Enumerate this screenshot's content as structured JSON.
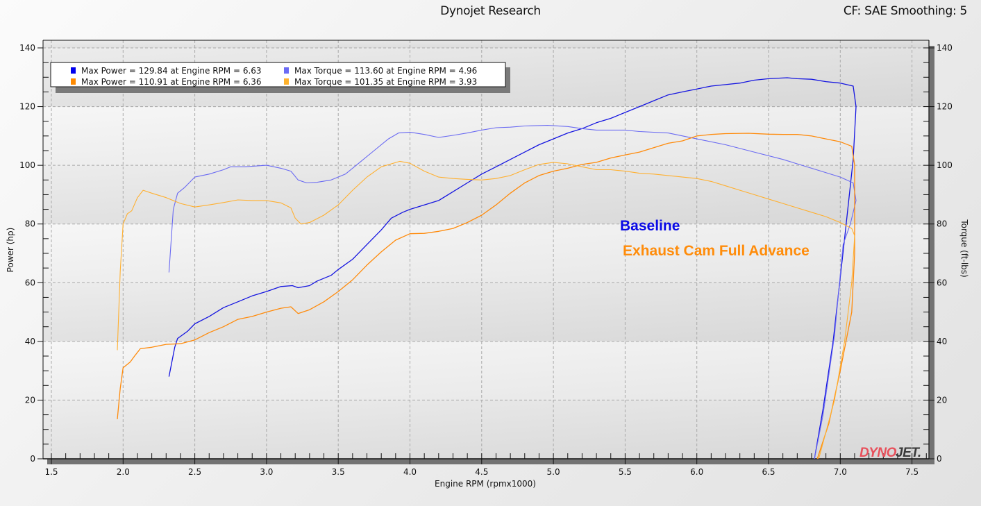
{
  "header": {
    "title": "Dynojet Research",
    "correction": "CF: SAE Smoothing: 5"
  },
  "logo": {
    "text_red": "DYNO",
    "text_dark": "JET",
    "dot": "."
  },
  "annotations": [
    {
      "label": "Baseline",
      "color": "#0a0ae6"
    },
    {
      "label": "Exhaust Cam Full Advance",
      "color": "#ff8c0a"
    }
  ],
  "legend": [
    {
      "swatch": "#0000ee",
      "text": "Max Power = 129.84 at Engine RPM = 6.63"
    },
    {
      "swatch": "#6b6bf5",
      "text": "Max Torque = 113.60 at Engine RPM = 4.96"
    },
    {
      "swatch": "#ff8a00",
      "text": "Max Power = 110.91 at Engine RPM = 6.36"
    },
    {
      "swatch": "#ffb22c",
      "text": "Max Torque = 101.35 at Engine RPM = 3.93"
    }
  ],
  "chart_data": {
    "type": "line",
    "title": "Dynojet Research",
    "subtitle": "CF: SAE Smoothing: 5",
    "xlabel": "Engine RPM (rpmx1000)",
    "ylabel": "Power (hp)",
    "y2label": "Torque (ft-lbs)",
    "xlim": [
      1.45,
      7.62
    ],
    "ylim": [
      0,
      140
    ],
    "y2lim": [
      0,
      140
    ],
    "x_ticks": [
      "1.5",
      "2.0",
      "2.5",
      "3.0",
      "3.5",
      "4.0",
      "4.5",
      "5.0",
      "5.5",
      "6.0",
      "6.5",
      "7.0",
      "7.5"
    ],
    "y_ticks": [
      "0",
      "20",
      "40",
      "60",
      "80",
      "100",
      "120",
      "140"
    ],
    "y2_ticks": [
      "0",
      "20",
      "40",
      "60",
      "80",
      "100",
      "120",
      "140"
    ],
    "grid": true,
    "legend_position": "top-left",
    "series": [
      {
        "name": "Baseline Power (hp)",
        "axis": "left",
        "color": "#1414e0",
        "width": 1.3,
        "points": [
          [
            2.32,
            28
          ],
          [
            2.36,
            38
          ],
          [
            2.38,
            41
          ],
          [
            2.45,
            43.5
          ],
          [
            2.5,
            46
          ],
          [
            2.6,
            48.5
          ],
          [
            2.7,
            51.5
          ],
          [
            2.8,
            53.5
          ],
          [
            2.9,
            55.5
          ],
          [
            3.0,
            57
          ],
          [
            3.1,
            58.7
          ],
          [
            3.18,
            59
          ],
          [
            3.22,
            58.3
          ],
          [
            3.3,
            59
          ],
          [
            3.35,
            60.5
          ],
          [
            3.45,
            62.5
          ],
          [
            3.5,
            64.5
          ],
          [
            3.6,
            68
          ],
          [
            3.7,
            73
          ],
          [
            3.8,
            78
          ],
          [
            3.87,
            82
          ],
          [
            3.95,
            84
          ],
          [
            4.0,
            85
          ],
          [
            4.1,
            86.5
          ],
          [
            4.2,
            88
          ],
          [
            4.3,
            91
          ],
          [
            4.4,
            94
          ],
          [
            4.5,
            97
          ],
          [
            4.6,
            99.5
          ],
          [
            4.7,
            102
          ],
          [
            4.8,
            104.5
          ],
          [
            4.9,
            107
          ],
          [
            5.0,
            109
          ],
          [
            5.1,
            111
          ],
          [
            5.2,
            112.5
          ],
          [
            5.3,
            114.5
          ],
          [
            5.4,
            116
          ],
          [
            5.5,
            118
          ],
          [
            5.6,
            120
          ],
          [
            5.7,
            122
          ],
          [
            5.8,
            124
          ],
          [
            5.9,
            125
          ],
          [
            6.0,
            126
          ],
          [
            6.1,
            127
          ],
          [
            6.2,
            127.5
          ],
          [
            6.3,
            128
          ],
          [
            6.4,
            129
          ],
          [
            6.5,
            129.5
          ],
          [
            6.63,
            129.84
          ],
          [
            6.7,
            129.5
          ],
          [
            6.8,
            129.3
          ],
          [
            6.9,
            128.5
          ],
          [
            7.0,
            128
          ],
          [
            7.09,
            127
          ],
          [
            7.11,
            120
          ],
          [
            7.09,
            102
          ],
          [
            7.03,
            75
          ],
          [
            6.95,
            40
          ],
          [
            6.88,
            17
          ],
          [
            6.82,
            0
          ]
        ]
      },
      {
        "name": "Baseline Torque (ft-lbs)",
        "axis": "right",
        "color": "#6a6af2",
        "width": 1.1,
        "points": [
          [
            2.32,
            63.5
          ],
          [
            2.35,
            85
          ],
          [
            2.38,
            90.5
          ],
          [
            2.43,
            92.5
          ],
          [
            2.5,
            96
          ],
          [
            2.6,
            97
          ],
          [
            2.7,
            98.5
          ],
          [
            2.75,
            99.5
          ],
          [
            2.85,
            99.5
          ],
          [
            3.0,
            100
          ],
          [
            3.1,
            99
          ],
          [
            3.17,
            98
          ],
          [
            3.22,
            95
          ],
          [
            3.28,
            94
          ],
          [
            3.35,
            94.2
          ],
          [
            3.45,
            95
          ],
          [
            3.55,
            97
          ],
          [
            3.65,
            101
          ],
          [
            3.75,
            105
          ],
          [
            3.85,
            109
          ],
          [
            3.92,
            111
          ],
          [
            4.0,
            111.3
          ],
          [
            4.1,
            110.5
          ],
          [
            4.2,
            109.5
          ],
          [
            4.3,
            110.2
          ],
          [
            4.4,
            111
          ],
          [
            4.5,
            112
          ],
          [
            4.6,
            112.8
          ],
          [
            4.7,
            113
          ],
          [
            4.8,
            113.4
          ],
          [
            4.96,
            113.6
          ],
          [
            5.1,
            113.2
          ],
          [
            5.2,
            112.5
          ],
          [
            5.3,
            112
          ],
          [
            5.5,
            112
          ],
          [
            5.6,
            111.5
          ],
          [
            5.8,
            111
          ],
          [
            6.0,
            109
          ],
          [
            6.2,
            107
          ],
          [
            6.4,
            104.5
          ],
          [
            6.6,
            102
          ],
          [
            6.8,
            99
          ],
          [
            7.0,
            96
          ],
          [
            7.09,
            94
          ],
          [
            7.11,
            88
          ],
          [
            7.07,
            80
          ],
          [
            7.02,
            73
          ],
          [
            6.96,
            42
          ],
          [
            6.88,
            15
          ],
          [
            6.82,
            0
          ]
        ]
      },
      {
        "name": "Exhaust Cam Full Advance Power (hp)",
        "axis": "left",
        "color": "#ff8a0a",
        "width": 1.3,
        "points": [
          [
            1.96,
            13.5
          ],
          [
            1.98,
            24
          ],
          [
            2.0,
            31
          ],
          [
            2.05,
            33
          ],
          [
            2.08,
            35
          ],
          [
            2.12,
            37.5
          ],
          [
            2.2,
            38
          ],
          [
            2.3,
            39
          ],
          [
            2.4,
            39.2
          ],
          [
            2.5,
            40.5
          ],
          [
            2.6,
            43
          ],
          [
            2.7,
            45
          ],
          [
            2.8,
            47.5
          ],
          [
            2.9,
            48.5
          ],
          [
            3.0,
            50
          ],
          [
            3.1,
            51.3
          ],
          [
            3.17,
            51.8
          ],
          [
            3.22,
            49.5
          ],
          [
            3.3,
            50.8
          ],
          [
            3.4,
            53.5
          ],
          [
            3.5,
            57
          ],
          [
            3.6,
            61
          ],
          [
            3.7,
            66
          ],
          [
            3.8,
            70.5
          ],
          [
            3.9,
            74.5
          ],
          [
            4.0,
            76.7
          ],
          [
            4.1,
            76.8
          ],
          [
            4.2,
            77.5
          ],
          [
            4.3,
            78.5
          ],
          [
            4.4,
            80.5
          ],
          [
            4.5,
            83
          ],
          [
            4.6,
            86.5
          ],
          [
            4.7,
            90.5
          ],
          [
            4.8,
            94
          ],
          [
            4.9,
            96.5
          ],
          [
            5.0,
            98
          ],
          [
            5.1,
            99
          ],
          [
            5.2,
            100.3
          ],
          [
            5.3,
            101
          ],
          [
            5.4,
            102.5
          ],
          [
            5.5,
            103.5
          ],
          [
            5.6,
            104.5
          ],
          [
            5.7,
            106
          ],
          [
            5.8,
            107.5
          ],
          [
            5.9,
            108.3
          ],
          [
            6.0,
            110
          ],
          [
            6.1,
            110.5
          ],
          [
            6.2,
            110.8
          ],
          [
            6.36,
            110.91
          ],
          [
            6.5,
            110.6
          ],
          [
            6.6,
            110.5
          ],
          [
            6.7,
            110.5
          ],
          [
            6.8,
            110
          ],
          [
            6.9,
            109
          ],
          [
            7.0,
            108
          ],
          [
            7.08,
            106.5
          ],
          [
            7.1,
            100
          ],
          [
            7.1,
            70
          ],
          [
            7.08,
            50
          ],
          [
            7.0,
            30
          ],
          [
            6.92,
            12
          ],
          [
            6.84,
            0
          ]
        ]
      },
      {
        "name": "Exhaust Cam Full Advance Torque (ft-lbs)",
        "axis": "right",
        "color": "#ffb030",
        "width": 1.1,
        "points": [
          [
            1.96,
            37
          ],
          [
            1.98,
            64
          ],
          [
            2.0,
            80
          ],
          [
            2.03,
            83.5
          ],
          [
            2.06,
            84.5
          ],
          [
            2.1,
            89
          ],
          [
            2.14,
            91.5
          ],
          [
            2.2,
            90.5
          ],
          [
            2.3,
            89
          ],
          [
            2.4,
            87
          ],
          [
            2.5,
            85.8
          ],
          [
            2.6,
            86.5
          ],
          [
            2.7,
            87.3
          ],
          [
            2.8,
            88.2
          ],
          [
            2.9,
            88
          ],
          [
            3.0,
            88
          ],
          [
            3.1,
            87.2
          ],
          [
            3.17,
            85.5
          ],
          [
            3.2,
            82
          ],
          [
            3.24,
            80
          ],
          [
            3.3,
            80.5
          ],
          [
            3.4,
            83
          ],
          [
            3.5,
            86.5
          ],
          [
            3.6,
            91.5
          ],
          [
            3.7,
            96
          ],
          [
            3.8,
            99.5
          ],
          [
            3.93,
            101.35
          ],
          [
            4.0,
            100.7
          ],
          [
            4.1,
            98
          ],
          [
            4.2,
            96
          ],
          [
            4.3,
            95.5
          ],
          [
            4.4,
            95.2
          ],
          [
            4.5,
            95
          ],
          [
            4.6,
            95.5
          ],
          [
            4.7,
            96.5
          ],
          [
            4.8,
            98.5
          ],
          [
            4.9,
            100.3
          ],
          [
            5.0,
            101
          ],
          [
            5.1,
            100.5
          ],
          [
            5.2,
            99.5
          ],
          [
            5.3,
            98.5
          ],
          [
            5.4,
            98.5
          ],
          [
            5.5,
            98
          ],
          [
            5.6,
            97.3
          ],
          [
            5.7,
            97
          ],
          [
            5.8,
            96.5
          ],
          [
            5.9,
            96
          ],
          [
            6.0,
            95.5
          ],
          [
            6.1,
            94.5
          ],
          [
            6.2,
            93
          ],
          [
            6.3,
            91.5
          ],
          [
            6.4,
            90
          ],
          [
            6.5,
            88.5
          ],
          [
            6.6,
            87
          ],
          [
            6.7,
            85.5
          ],
          [
            6.8,
            84
          ],
          [
            6.9,
            82.5
          ],
          [
            7.0,
            80.5
          ],
          [
            7.08,
            78.5
          ],
          [
            7.1,
            76
          ],
          [
            7.08,
            60
          ],
          [
            7.03,
            40
          ],
          [
            6.96,
            20
          ],
          [
            6.85,
            0
          ]
        ]
      }
    ]
  }
}
